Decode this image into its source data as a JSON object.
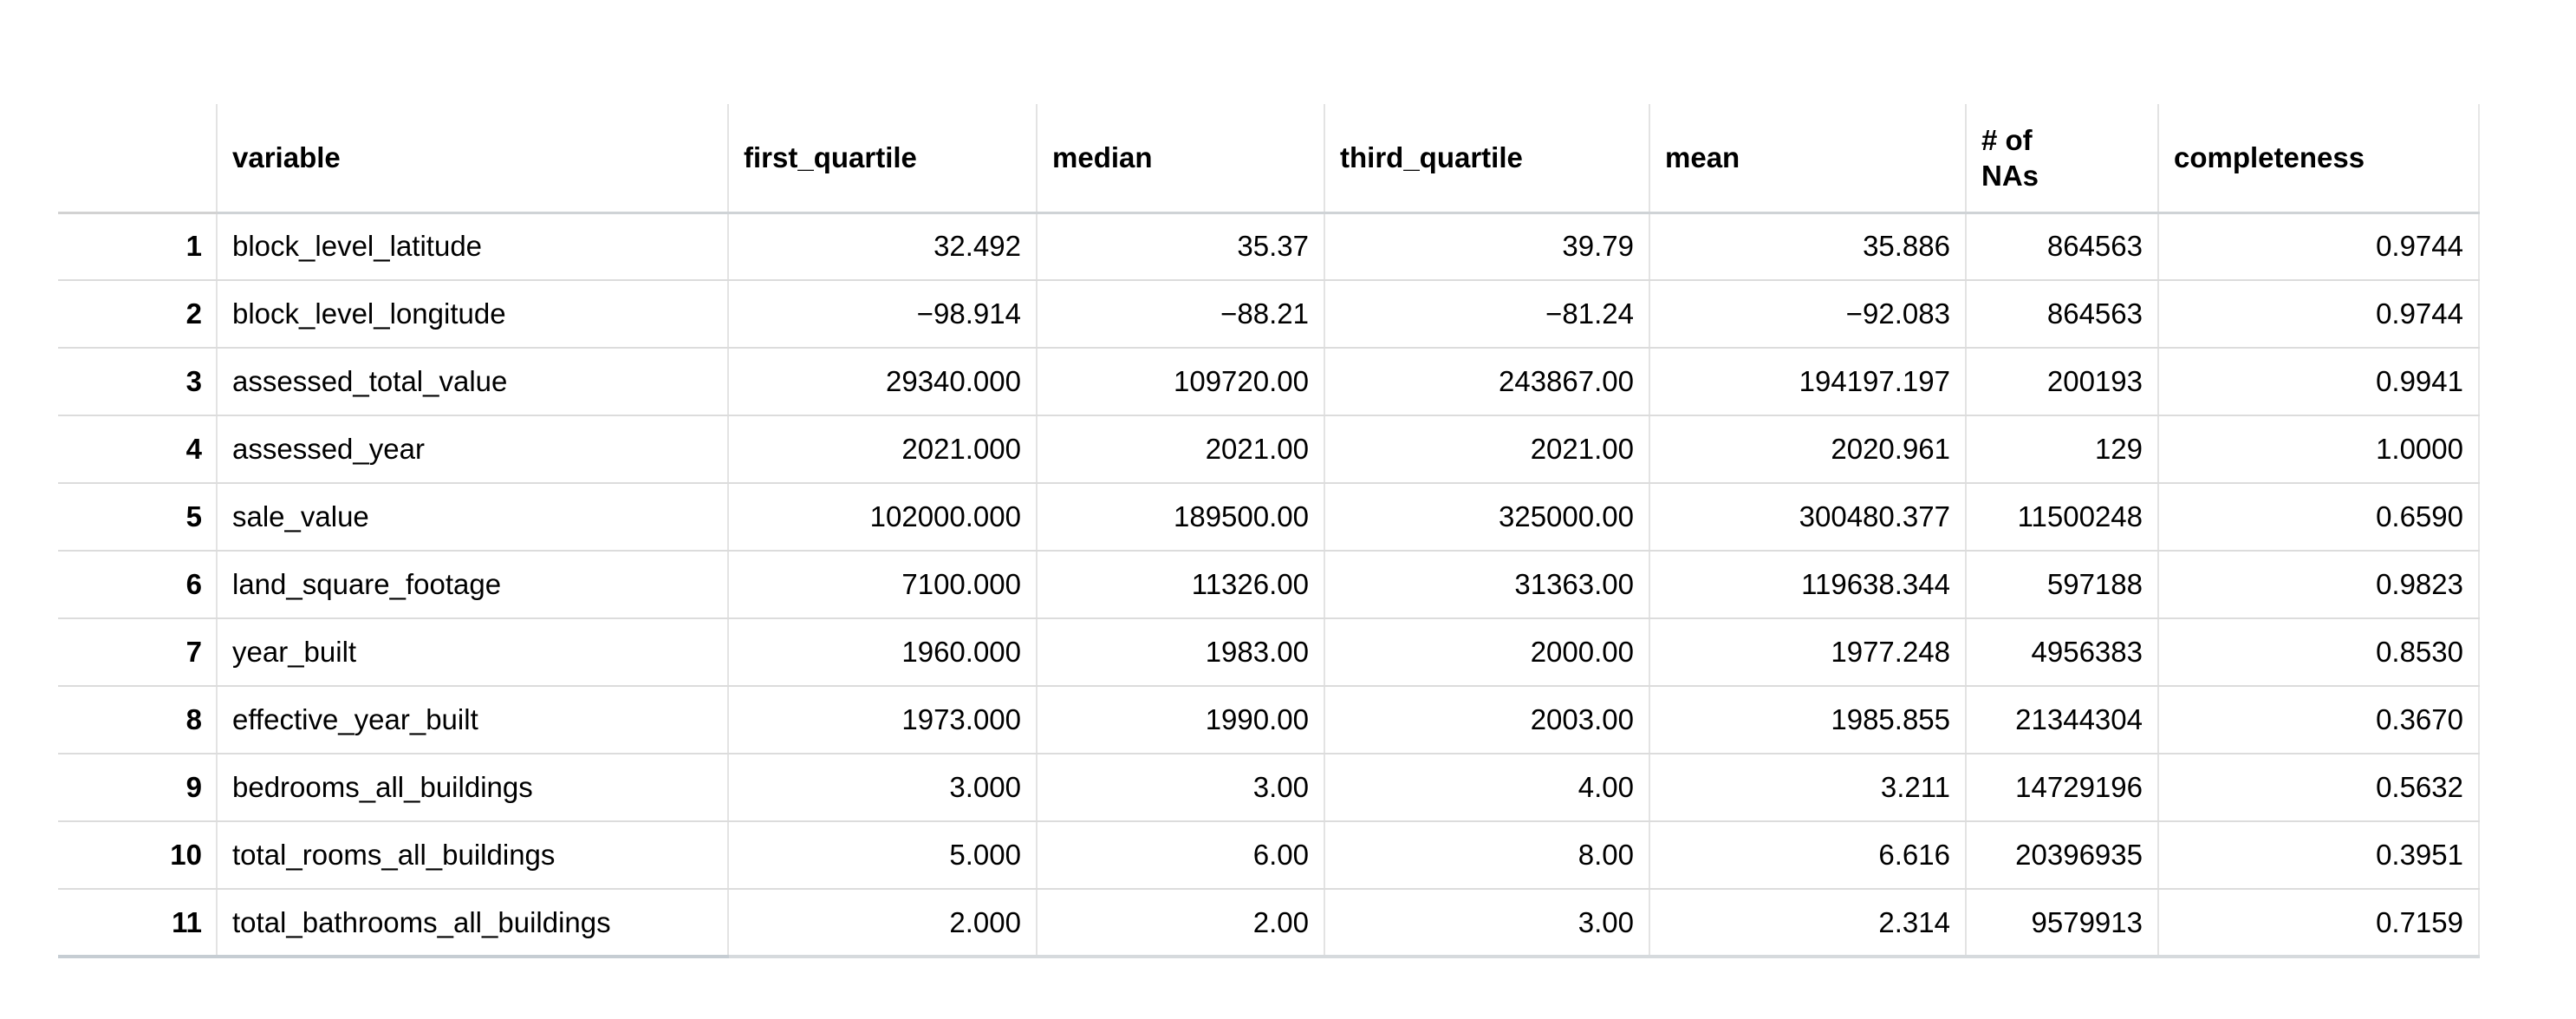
{
  "table": {
    "columns": [
      {
        "key": "row_number",
        "label": ""
      },
      {
        "key": "variable",
        "label": "variable"
      },
      {
        "key": "first_quartile",
        "label": "first_quartile"
      },
      {
        "key": "median",
        "label": "median"
      },
      {
        "key": "third_quartile",
        "label": "third_quartile"
      },
      {
        "key": "mean",
        "label": "mean"
      },
      {
        "key": "num_nas",
        "label": "# of\nNAs"
      },
      {
        "key": "completeness",
        "label": "completeness"
      }
    ],
    "rows": [
      {
        "row_number": "1",
        "variable": "block_level_latitude",
        "first_quartile": "32.492",
        "median": "35.37",
        "third_quartile": "39.79",
        "mean": "35.886",
        "num_nas": "864563",
        "completeness": "0.9744"
      },
      {
        "row_number": "2",
        "variable": "block_level_longitude",
        "first_quartile": "−98.914",
        "median": "−88.21",
        "third_quartile": "−81.24",
        "mean": "−92.083",
        "num_nas": "864563",
        "completeness": "0.9744"
      },
      {
        "row_number": "3",
        "variable": "assessed_total_value",
        "first_quartile": "29340.000",
        "median": "109720.00",
        "third_quartile": "243867.00",
        "mean": "194197.197",
        "num_nas": "200193",
        "completeness": "0.9941"
      },
      {
        "row_number": "4",
        "variable": "assessed_year",
        "first_quartile": "2021.000",
        "median": "2021.00",
        "third_quartile": "2021.00",
        "mean": "2020.961",
        "num_nas": "129",
        "completeness": "1.0000"
      },
      {
        "row_number": "5",
        "variable": "sale_value",
        "first_quartile": "102000.000",
        "median": "189500.00",
        "third_quartile": "325000.00",
        "mean": "300480.377",
        "num_nas": "11500248",
        "completeness": "0.6590"
      },
      {
        "row_number": "6",
        "variable": "land_square_footage",
        "first_quartile": "7100.000",
        "median": "11326.00",
        "third_quartile": "31363.00",
        "mean": "119638.344",
        "num_nas": "597188",
        "completeness": "0.9823"
      },
      {
        "row_number": "7",
        "variable": "year_built",
        "first_quartile": "1960.000",
        "median": "1983.00",
        "third_quartile": "2000.00",
        "mean": "1977.248",
        "num_nas": "4956383",
        "completeness": "0.8530"
      },
      {
        "row_number": "8",
        "variable": "effective_year_built",
        "first_quartile": "1973.000",
        "median": "1990.00",
        "third_quartile": "2003.00",
        "mean": "1985.855",
        "num_nas": "21344304",
        "completeness": "0.3670"
      },
      {
        "row_number": "9",
        "variable": "bedrooms_all_buildings",
        "first_quartile": "3.000",
        "median": "3.00",
        "third_quartile": "4.00",
        "mean": "3.211",
        "num_nas": "14729196",
        "completeness": "0.5632"
      },
      {
        "row_number": "10",
        "variable": "total_rooms_all_buildings",
        "first_quartile": "5.000",
        "median": "6.00",
        "third_quartile": "8.00",
        "mean": "6.616",
        "num_nas": "20396935",
        "completeness": "0.3951"
      },
      {
        "row_number": "11",
        "variable": "total_bathrooms_all_buildings",
        "first_quartile": "2.000",
        "median": "2.00",
        "third_quartile": "3.00",
        "mean": "2.314",
        "num_nas": "9579913",
        "completeness": "0.7159"
      }
    ]
  }
}
